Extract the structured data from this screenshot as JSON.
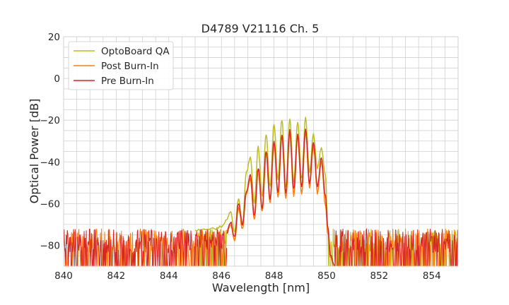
{
  "chart_data": {
    "type": "line",
    "title": "D4789 V21116 Ch. 5",
    "xlabel": "Wavelength [nm]",
    "ylabel": "Optical Power [dB]",
    "xlim": [
      840,
      855
    ],
    "ylim": [
      -90,
      20
    ],
    "xticks": [
      840,
      842,
      844,
      846,
      848,
      850,
      852,
      854
    ],
    "yticks": [
      20,
      0,
      -20,
      -40,
      -60,
      -80
    ],
    "grid": true,
    "minor_grid": true,
    "legend_position": "top-left",
    "noise_floor": {
      "mean": -82,
      "min": -90,
      "max": -72
    },
    "series": [
      {
        "name": "OptoBoard QA",
        "color": "#bcbd22",
        "x": [
          845.0,
          845.4,
          845.8,
          846.0,
          846.2,
          846.35,
          846.5,
          846.65,
          846.8,
          846.95,
          847.1,
          847.25,
          847.4,
          847.55,
          847.7,
          847.85,
          848.0,
          848.15,
          848.3,
          848.45,
          848.6,
          848.75,
          848.9,
          849.05,
          849.2,
          849.35,
          849.5,
          849.65,
          849.8,
          849.95,
          850.05,
          850.15,
          850.3
        ],
        "y": [
          -73,
          -72,
          -72,
          -71,
          -68,
          -64,
          -74,
          -58,
          -70,
          -45,
          -38,
          -60,
          -33,
          -56,
          -27,
          -52,
          -22,
          -48,
          -20,
          -52,
          -19,
          -50,
          -21,
          -48,
          -19,
          -45,
          -27,
          -43,
          -33,
          -46,
          -72,
          -85,
          -90
        ]
      },
      {
        "name": "Post Burn-In",
        "color": "#ff7f0e",
        "x": [
          846.2,
          846.35,
          846.5,
          846.65,
          846.8,
          846.95,
          847.1,
          847.25,
          847.4,
          847.55,
          847.7,
          847.85,
          848.0,
          848.15,
          848.3,
          848.45,
          848.6,
          848.75,
          848.9,
          849.05,
          849.2,
          849.35,
          849.5,
          849.65,
          849.8,
          849.95,
          850.05,
          850.15,
          850.3
        ],
        "y": [
          -73,
          -70,
          -78,
          -62,
          -72,
          -55,
          -48,
          -68,
          -44,
          -64,
          -36,
          -60,
          -31,
          -57,
          -28,
          -58,
          -26,
          -56,
          -28,
          -55,
          -26,
          -52,
          -32,
          -55,
          -40,
          -60,
          -74,
          -86,
          -90
        ]
      },
      {
        "name": "Pre Burn-In",
        "color": "#d62728",
        "x": [
          846.2,
          846.35,
          846.5,
          846.65,
          846.8,
          846.95,
          847.1,
          847.25,
          847.4,
          847.55,
          847.7,
          847.85,
          848.0,
          848.15,
          848.3,
          848.45,
          848.6,
          848.75,
          848.9,
          849.05,
          849.2,
          849.35,
          849.5,
          849.65,
          849.8,
          849.95,
          850.05,
          850.15,
          850.3
        ],
        "y": [
          -74,
          -69,
          -76,
          -60,
          -70,
          -54,
          -46,
          -66,
          -43,
          -62,
          -35,
          -58,
          -30,
          -55,
          -27,
          -55,
          -25,
          -53,
          -27,
          -52,
          -24,
          -50,
          -31,
          -52,
          -38,
          -56,
          -72,
          -85,
          -90
        ]
      }
    ]
  }
}
